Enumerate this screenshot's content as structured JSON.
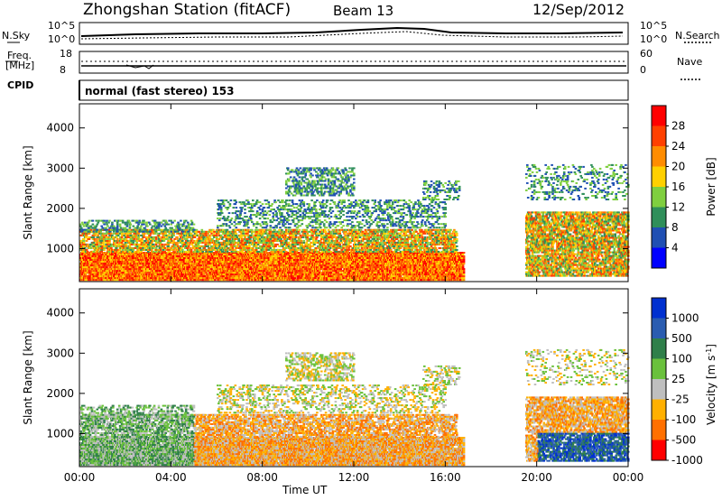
{
  "header": {
    "station": "Zhongshan Station (fitACF)",
    "beam": "Beam 13",
    "date": "12/Sep/2012"
  },
  "noise_panel": {
    "left_label": "N.Sky",
    "right_label": "N.Search",
    "left_ticks": [
      "10^5",
      "10^0"
    ],
    "right_ticks": [
      "10^5",
      "10^0"
    ]
  },
  "freq_panel": {
    "left_label_1": "Freq.",
    "left_label_2": "[MHz]",
    "left_ticks": [
      "18",
      "8"
    ],
    "right_label": "Nave",
    "right_ticks": [
      "60",
      "0"
    ]
  },
  "cpid_panel": {
    "label": "CPID",
    "text": "normal (fast stereo) 153"
  },
  "chart_data": [
    {
      "type": "heatmap",
      "name": "Power",
      "xlabel": "",
      "ylabel": "Slant Range [km]",
      "x_ticks": [
        "00:00",
        "04:00",
        "08:00",
        "12:00",
        "16:00",
        "20:00",
        "00:00"
      ],
      "y_ticks": [
        1000,
        2000,
        3000,
        4000
      ],
      "ylim": [
        180,
        4600
      ],
      "colorbar_label": "Power [dB]",
      "colorbar_ticks": [
        "4",
        "8",
        "12",
        "16",
        "20",
        "24",
        "28"
      ],
      "colors": [
        "#0000ff",
        "#1f4fb3",
        "#2f8f5a",
        "#7fcf3f",
        "#ffd000",
        "#ff8c00",
        "#ff4000",
        "#ff0000"
      ]
    },
    {
      "type": "heatmap",
      "name": "Velocity",
      "xlabel": "Time UT",
      "ylabel": "Slant Range [km]",
      "x_ticks": [
        "00:00",
        "04:00",
        "08:00",
        "12:00",
        "16:00",
        "20:00",
        "00:00"
      ],
      "y_ticks": [
        1000,
        2000,
        3000,
        4000
      ],
      "ylim": [
        180,
        4600
      ],
      "colorbar_label": "Velocity [m s",
      "colorbar_label_sup": "-1",
      "colorbar_label_end": "]",
      "colorbar_ticks": [
        "1000",
        "500",
        "100",
        "25",
        "-25",
        "-100",
        "-500",
        "-1000"
      ],
      "colors": [
        "#0030d0",
        "#2a5cb0",
        "#2f7f4a",
        "#6ac13c",
        "#bfbfbf",
        "#ffb000",
        "#ff7000",
        "#ff0000"
      ]
    }
  ]
}
